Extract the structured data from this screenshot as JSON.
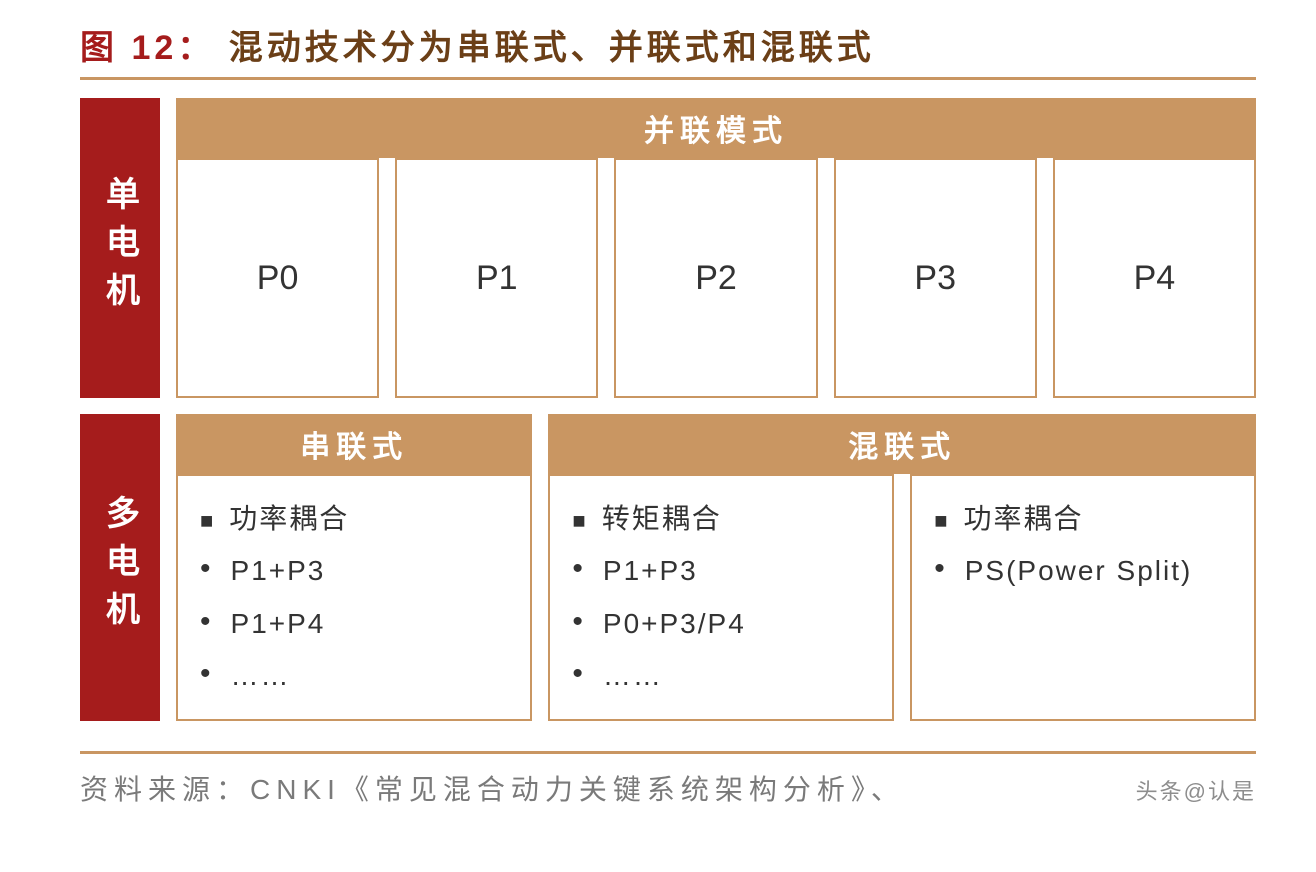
{
  "colors": {
    "maroon": "#a51c1c",
    "brown_title": "#6b3f17",
    "tan_header": "#c99662",
    "tan_border": "#c99662",
    "rule": "#c99662",
    "label_text": "#ffffff",
    "header_text": "#ffffff",
    "body_text": "#333333",
    "footer_text": "#7a7a7a"
  },
  "title": {
    "prefix": "图 12：",
    "text": "混动技术分为串联式、并联式和混联式"
  },
  "row1": {
    "label": "单电机",
    "header": "并联模式",
    "cells": [
      "P0",
      "P1",
      "P2",
      "P3",
      "P4"
    ]
  },
  "row2": {
    "label": "多电机",
    "header_left": "串联式",
    "header_right": "混联式",
    "card1": {
      "heading": "功率耦合",
      "items": [
        "P1+P3",
        "P1+P4",
        "……"
      ]
    },
    "card2": {
      "heading": "转矩耦合",
      "items": [
        "P1+P3",
        "P0+P3/P4",
        "……"
      ]
    },
    "card3": {
      "heading": "功率耦合",
      "items": [
        "PS(Power Split)"
      ]
    }
  },
  "footer": {
    "source": "资料来源：CNKI《常见混合动力关键系统架构分析》、",
    "watermark": "头条@认是"
  }
}
